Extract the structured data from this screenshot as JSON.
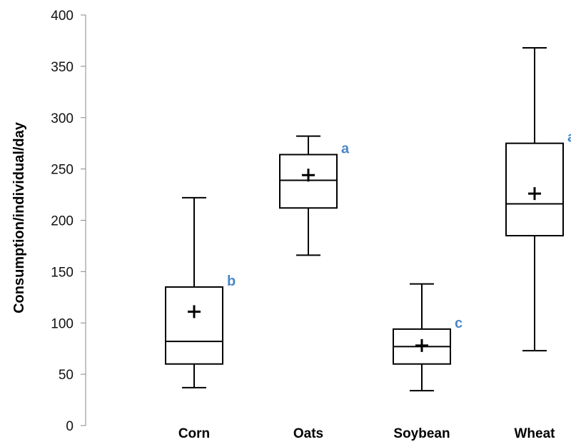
{
  "chart_data": {
    "type": "box",
    "ylabel": "Consumption/individual/day",
    "xlabel": "",
    "ylim": [
      0,
      400
    ],
    "yticks": [
      0,
      50,
      100,
      150,
      200,
      250,
      300,
      350,
      400
    ],
    "grid": false,
    "legend": "none",
    "colors": {
      "box": "#000000",
      "significance": "#4a86c8"
    },
    "categories": [
      "Corn",
      "Oats",
      "Soybean",
      "Wheat"
    ],
    "boxes": [
      {
        "category": "Corn",
        "min": 37,
        "q1": 60,
        "median": 82,
        "q3": 135,
        "max": 222,
        "mean": 111,
        "significance": "b"
      },
      {
        "category": "Oats",
        "min": 166,
        "q1": 212,
        "median": 239,
        "q3": 264,
        "max": 282,
        "mean": 244,
        "significance": "a"
      },
      {
        "category": "Soybean",
        "min": 34,
        "q1": 60,
        "median": 77,
        "q3": 94,
        "max": 138,
        "mean": 78,
        "significance": "c"
      },
      {
        "category": "Wheat",
        "min": 73,
        "q1": 185,
        "median": 216,
        "q3": 275,
        "max": 368,
        "mean": 226,
        "significance": "a"
      }
    ]
  }
}
